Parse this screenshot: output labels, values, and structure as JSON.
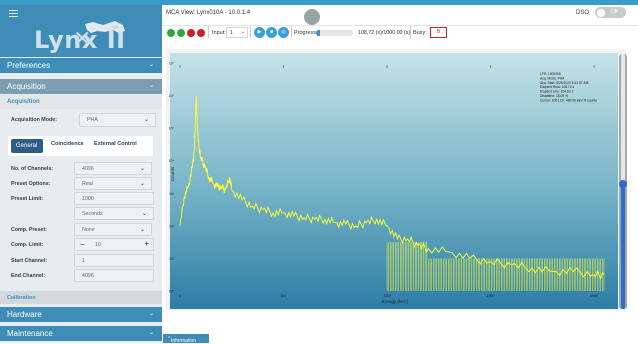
{
  "sidebar": {
    "menu_icon": "hamburger-menu-icon",
    "logo_text": "Lynx II",
    "sections": {
      "preferences": "Preferences",
      "acquisition": "Acquisition",
      "calibration": "Calibration",
      "hardware": "Hardware",
      "maintenance": "Maintenance"
    },
    "acquisition_header": "Acquisition",
    "acquisition_mode_label": "Acquisition Mode:",
    "acquisition_mode_value": "PHA",
    "tabs": [
      "General",
      "Coincidence",
      "External Control"
    ],
    "fields": {
      "num_channels_label": "No. of Channels:",
      "num_channels_value": "4096",
      "preset_options_label": "Preset Options:",
      "preset_options_value": "Real",
      "preset_limit_label": "Preset Limit:",
      "preset_limit_value": "1000",
      "preset_unit_value": "Seconds",
      "comp_preset_label": "Comp. Preset:",
      "comp_preset_value": "None",
      "comp_limit_label": "Comp. Limit:",
      "comp_limit_value": "10",
      "start_channel_label": "Start Channel:",
      "start_channel_value": "1",
      "end_channel_label": "End Channel:",
      "end_channel_value": "4096"
    }
  },
  "header": {
    "title": "MCA View: Lynx010A - 10.0.1.4",
    "dso_label": "DSO",
    "dso_toggle_text": "Off"
  },
  "toolbar": {
    "input_label": "Input:",
    "input_value": "1",
    "progress_label": "Progress:",
    "progress_text": "108,72 (s)/1000.00 (s)",
    "progress_fraction": 0.109,
    "busy_label": "Busy:",
    "busy_value": "B"
  },
  "chart_data": {
    "type": "line",
    "xlabel": "Energy (keV)",
    "ylabel": "Counts",
    "xlim": [
      0,
      2048
    ],
    "ylim_log10": [
      0,
      7
    ],
    "yscale": "log",
    "x_ticks": [
      "0",
      "500",
      "1000",
      "1500",
      "2000"
    ],
    "y_ticks": [
      "10⁰",
      "10¹",
      "10²",
      "10³",
      "10⁴",
      "10⁵",
      "10⁶",
      "10⁷"
    ],
    "series_color": "#ffff33",
    "points": [
      [
        0,
        2.0
      ],
      [
        20,
        2.9
      ],
      [
        40,
        3.2
      ],
      [
        60,
        3.8
      ],
      [
        70,
        4.4
      ],
      [
        74,
        5.1
      ],
      [
        78,
        6.0
      ],
      [
        82,
        5.4
      ],
      [
        88,
        4.6
      ],
      [
        100,
        4.1
      ],
      [
        120,
        3.8
      ],
      [
        140,
        3.5
      ],
      [
        160,
        3.3
      ],
      [
        180,
        3.2
      ],
      [
        200,
        3.2
      ],
      [
        220,
        3.1
      ],
      [
        240,
        3.5
      ],
      [
        250,
        3.1
      ],
      [
        300,
        2.8
      ],
      [
        350,
        2.6
      ],
      [
        400,
        2.5
      ],
      [
        450,
        2.4
      ],
      [
        500,
        2.4
      ],
      [
        550,
        2.3
      ],
      [
        600,
        2.25
      ],
      [
        650,
        2.2
      ],
      [
        700,
        2.2
      ],
      [
        750,
        2.1
      ],
      [
        800,
        2.05
      ],
      [
        850,
        2.0
      ],
      [
        900,
        2.1
      ],
      [
        950,
        2.2
      ],
      [
        1000,
        2.0
      ],
      [
        1050,
        1.6
      ],
      [
        1100,
        1.6
      ],
      [
        1150,
        1.4
      ],
      [
        1200,
        1.3
      ],
      [
        1300,
        1.2
      ],
      [
        1400,
        1.0
      ],
      [
        1500,
        0.9
      ],
      [
        1600,
        0.8
      ],
      [
        1700,
        0.7
      ],
      [
        1800,
        0.6
      ],
      [
        1900,
        0.6
      ],
      [
        2000,
        0.5
      ],
      [
        2048,
        0.5
      ]
    ],
    "info_lines": [
      "LFS: 1000000",
      "Acq. Mode: PHA",
      "Acq. Start: 8/26/2022 8:11:57 AM",
      "Elapsed Real: 108.72 s",
      "Elapsed Live: 104.62 s",
      "Deadtime: 18.09 %",
      "Cursor: 1001 Ch. 480.90 keV: 8 counts"
    ]
  },
  "info_panel": {
    "label": "Information",
    "icon": "chevron-up-icon"
  }
}
